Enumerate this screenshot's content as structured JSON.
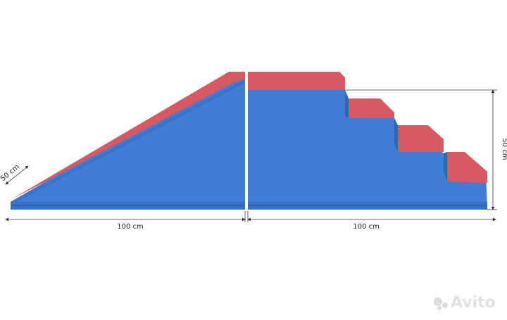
{
  "dimensions": [
    {
      "label": "50 cm"
    },
    {
      "label": "100 cm"
    },
    {
      "label": "100 cm"
    },
    {
      "label": "50 cm"
    }
  ],
  "watermark": "Avito"
}
